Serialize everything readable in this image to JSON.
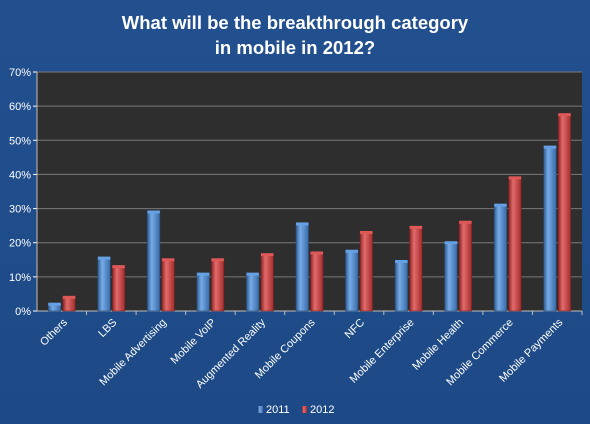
{
  "chart_data": {
    "type": "bar",
    "title_lines": [
      "What will be the breakthrough category",
      "in mobile in 2012?"
    ],
    "categories": [
      "Others",
      "LBS",
      "Mobile Advertising",
      "Mobile VoIP",
      "Augmented Reality",
      "Mobile Coupons",
      "NFC",
      "Mobile Enterprise",
      "Mobile Health",
      "Mobile Commerce",
      "Mobile Payments"
    ],
    "series": [
      {
        "name": "2011",
        "color": "#4a8fe0",
        "values": [
          2,
          15.5,
          29,
          10.8,
          10.8,
          25.5,
          17.5,
          14.5,
          20,
          31,
          48
        ]
      },
      {
        "name": "2012",
        "color": "#d93a3a",
        "values": [
          4,
          13,
          15,
          15,
          16.5,
          17,
          23,
          24.5,
          26,
          39,
          57.5
        ]
      }
    ],
    "y_ticks": [
      "0%",
      "10%",
      "20%",
      "30%",
      "40%",
      "50%",
      "60%",
      "70%"
    ],
    "ylim": [
      0,
      70
    ],
    "grid": true,
    "legend_position": "bottom",
    "colors": {
      "background": "#1f4e8c",
      "plot_area": "#2e2e2e",
      "grid": "#7a7a7a"
    }
  }
}
